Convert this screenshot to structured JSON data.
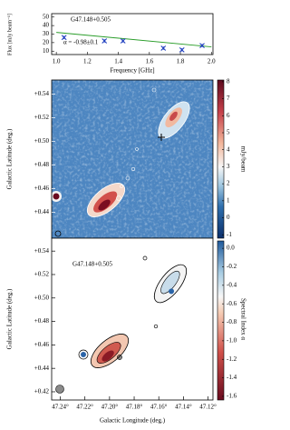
{
  "chart_data": [
    {
      "type": "scatter",
      "title": "G47.148+0.505",
      "annotation": "α = -0.98±0.1",
      "xlabel": "Frequency [GHz]",
      "ylabel": "Flux [mJy beam⁻¹]",
      "x": [
        1.05,
        1.31,
        1.43,
        1.69,
        1.81,
        1.94
      ],
      "values": [
        26,
        22,
        22,
        13.5,
        11.5,
        16.5
      ],
      "errors": [
        2,
        2,
        2,
        2,
        2,
        2
      ],
      "color": "#1f3fbf",
      "fit": {
        "x": [
          1.0,
          2.0
        ],
        "values": [
          32,
          15
        ],
        "color": "#2a9d2a"
      },
      "xlim": [
        0.97,
        2.01
      ],
      "xticks": [
        {
          "value": 1,
          "label": "1.0"
        },
        1.2,
        1.4,
        1.6,
        1.8,
        {
          "value": 2,
          "label": "2.0"
        }
      ],
      "ylim": [
        6,
        54
      ],
      "yticks": [
        10,
        20,
        30,
        40,
        50
      ]
    },
    {
      "type": "image",
      "ylabel": "Galactic Latitude (deg.)",
      "ylim": [
        0.418,
        0.552
      ],
      "yticks": [
        {
          "value": 0.54,
          "label": "+0.54"
        },
        {
          "value": 0.52,
          "label": "+0.52"
        },
        {
          "value": 0.5,
          "label": "+0.50"
        },
        {
          "value": 0.48,
          "label": "+0.48"
        },
        {
          "value": 0.46,
          "label": "+0.46"
        },
        {
          "value": 0.44,
          "label": "+0.44"
        }
      ],
      "colorbar": {
        "label": "mJy/beam",
        "lim": [
          -1.2,
          8.1
        ],
        "ticks": [
          8,
          7,
          6,
          5,
          4,
          3,
          2,
          1,
          0,
          -1
        ]
      }
    },
    {
      "type": "image",
      "title": "G47.148+0.505",
      "xlabel": "Galactic Longitude (deg.)",
      "ylabel": "Galactic Latitude (deg.)",
      "xlim": [
        47.247,
        47.116
      ],
      "xticks": [
        {
          "value": 47.24,
          "label": "47.24°"
        },
        {
          "value": 47.22,
          "label": "47.22°"
        },
        {
          "value": 47.2,
          "label": "47.20°"
        },
        {
          "value": 47.18,
          "label": "47.18°"
        },
        {
          "value": 47.16,
          "label": "47.16°"
        },
        {
          "value": 47.14,
          "label": "47.14°"
        },
        {
          "value": 47.12,
          "label": "47.12°"
        }
      ],
      "ylim": [
        0.413,
        0.551
      ],
      "yticks": [
        {
          "value": 0.54,
          "label": "+0.54"
        },
        {
          "value": 0.52,
          "label": "+0.52"
        },
        {
          "value": 0.5,
          "label": "+0.50"
        },
        {
          "value": 0.48,
          "label": "+0.48"
        },
        {
          "value": 0.46,
          "label": "+0.46"
        },
        {
          "value": 0.44,
          "label": "+0.44"
        },
        {
          "value": 0.42,
          "label": "+0.42"
        }
      ],
      "colorbar": {
        "label": "Spectral Index α",
        "lim": [
          -1.64,
          0.08
        ],
        "ticks": [
          {
            "value": 0,
            "label": "0.0"
          },
          -0.2,
          -0.4,
          -0.6,
          -0.8,
          {
            "value": -1,
            "label": "-1.0"
          },
          -1.2,
          -1.4,
          -1.6
        ]
      }
    }
  ]
}
